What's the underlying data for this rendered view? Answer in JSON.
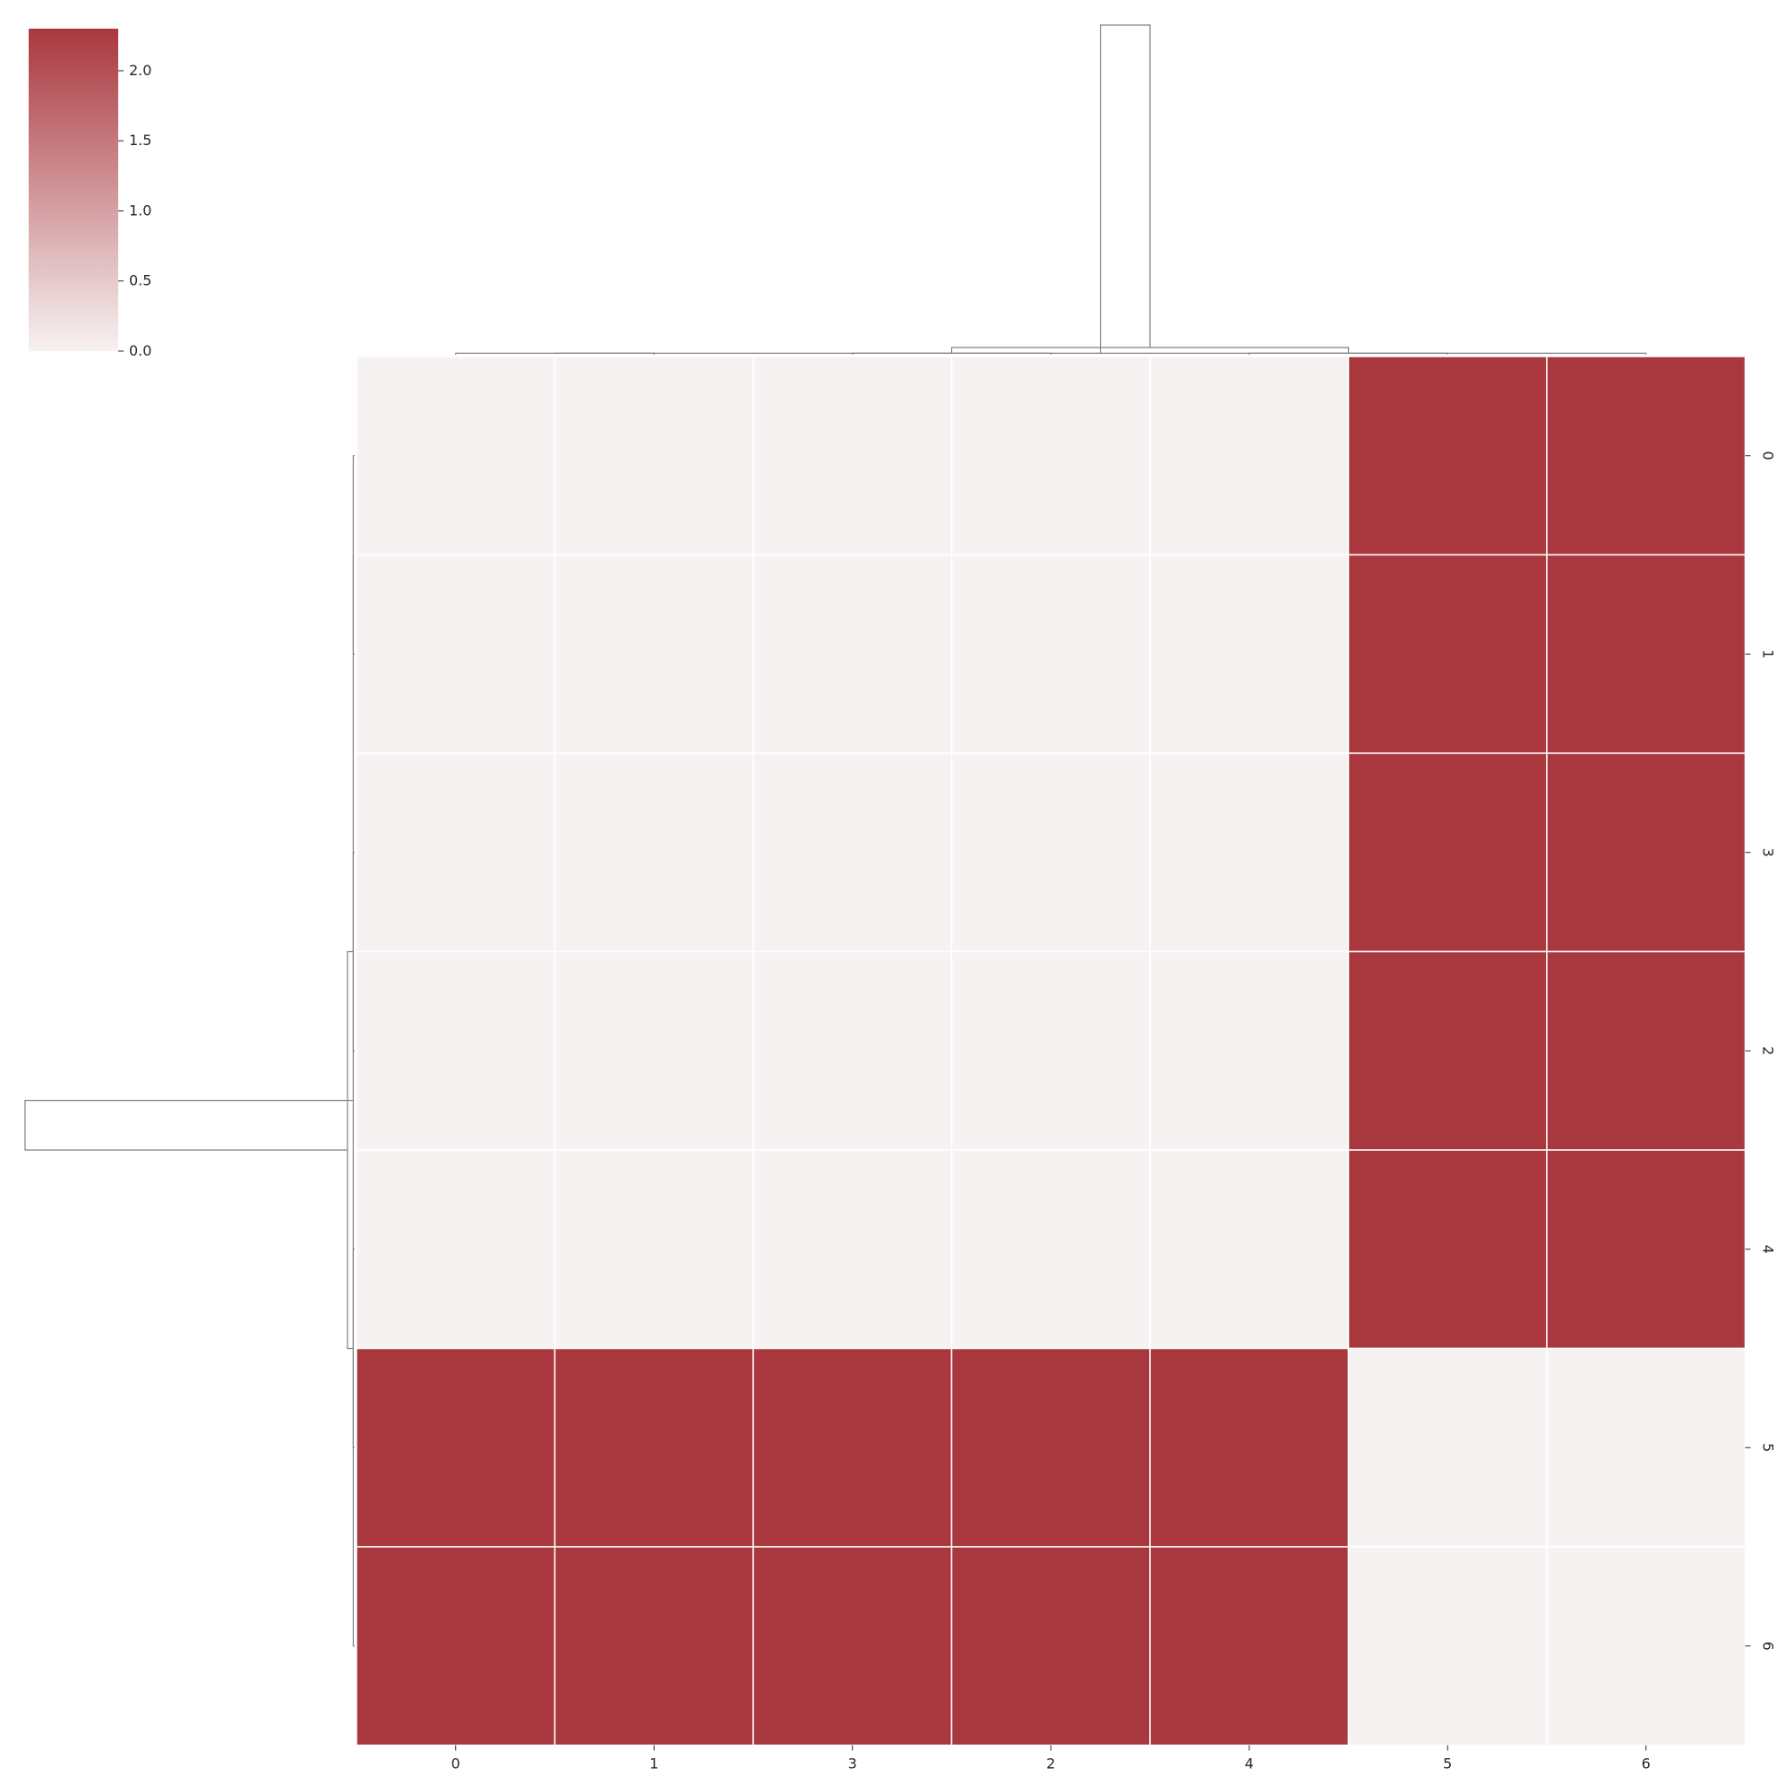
{
  "chart_data": {
    "type": "heatmap",
    "row_labels": [
      "0",
      "1",
      "3",
      "2",
      "4",
      "5",
      "6"
    ],
    "col_labels": [
      "0",
      "1",
      "3",
      "2",
      "4",
      "5",
      "6"
    ],
    "values": [
      [
        0.0,
        0.0,
        0.0,
        0.0,
        0.0,
        2.3,
        2.3
      ],
      [
        0.0,
        0.0,
        0.0,
        0.0,
        0.0,
        2.3,
        2.3
      ],
      [
        0.0,
        0.0,
        0.0,
        0.0,
        0.0,
        2.3,
        2.3
      ],
      [
        0.0,
        0.0,
        0.0,
        0.0,
        0.0,
        2.3,
        2.3
      ],
      [
        0.0,
        0.0,
        0.0,
        0.0,
        0.0,
        2.3,
        2.3
      ],
      [
        2.3,
        2.3,
        2.3,
        2.3,
        2.3,
        0.0,
        0.0
      ],
      [
        2.3,
        2.3,
        2.3,
        2.3,
        2.3,
        0.0,
        0.0
      ]
    ],
    "colorbar": {
      "range": [
        0.0,
        2.3
      ],
      "ticks": [
        "0.0",
        "0.5",
        "1.0",
        "1.5",
        "2.0"
      ],
      "low_color": "#f7f2f2",
      "high_color": "#a9373e"
    },
    "dendrogram": {
      "linkage_rows": [
        [
          0,
          1,
          0.01
        ],
        [
          2,
          3,
          0.01
        ],
        [
          4,
          5,
          0.01
        ],
        [
          6,
          7,
          0.01
        ],
        [
          8,
          9,
          0.05
        ],
        [
          10,
          11,
          2.3
        ]
      ],
      "linkage_cols": [
        [
          0,
          1,
          0.01
        ],
        [
          2,
          3,
          0.01
        ],
        [
          4,
          5,
          0.01
        ],
        [
          6,
          7,
          0.01
        ],
        [
          8,
          9,
          0.05
        ],
        [
          10,
          11,
          2.3
        ]
      ]
    },
    "grid_line_color": "#ffffff",
    "dendrogram_color": "#808080"
  }
}
